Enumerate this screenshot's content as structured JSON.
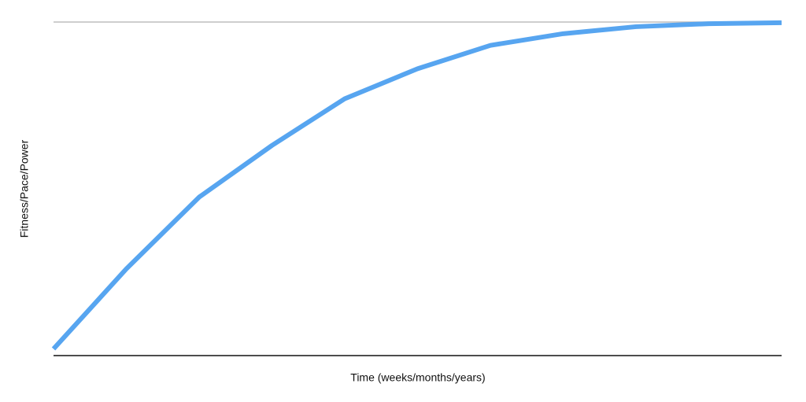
{
  "chart_data": {
    "type": "line",
    "x_label": "Time (weeks/months/years)",
    "y_label": "Fitness/Pace/Power",
    "x": [
      0,
      10,
      20,
      30,
      40,
      50,
      60,
      70,
      80,
      90,
      100
    ],
    "series": [
      {
        "color": "#57a5f0",
        "values": [
          2,
          26,
          47.5,
          63,
          77,
          86,
          93,
          96.5,
          98.6,
          99.5,
          99.8
        ]
      }
    ],
    "xlim": [
      0,
      100
    ],
    "ylim": [
      0,
      100
    ],
    "top_line": true,
    "top_line_color": "#bdbdbd"
  }
}
